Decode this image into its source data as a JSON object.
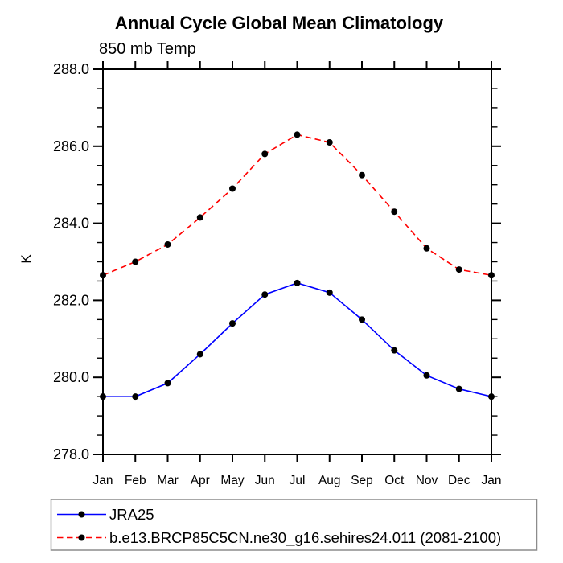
{
  "chart_data": {
    "type": "line",
    "title": "Annual Cycle Global Mean Climatology",
    "subtitle": "850 mb Temp",
    "xlabel": "",
    "ylabel": "K",
    "categories": [
      "Jan",
      "Feb",
      "Mar",
      "Apr",
      "May",
      "Jun",
      "Jul",
      "Aug",
      "Sep",
      "Oct",
      "Nov",
      "Dec",
      "Jan"
    ],
    "ylim": [
      278.0,
      288.0
    ],
    "y_major_tick_step": 2.0,
    "y_minor_tick_step": 0.5,
    "y_tick_labels": [
      "278.0",
      "280.0",
      "282.0",
      "284.0",
      "286.0",
      "288.0"
    ],
    "grid": false,
    "legend_position": "bottom-left-boxed",
    "axis_color": "#000000",
    "marker_color": "#000000",
    "series": [
      {
        "name": "JRA25",
        "color": "#0000ff",
        "line_style": "solid",
        "marker": "filled-circle",
        "values": [
          279.5,
          279.5,
          279.85,
          280.6,
          281.4,
          282.15,
          282.45,
          282.2,
          281.5,
          280.7,
          280.05,
          279.7,
          279.5
        ]
      },
      {
        "name": "b.e13.BRCP85C5CN.ne30_g16.sehires24.011 (2081-2100)",
        "color": "#ff0000",
        "line_style": "dashed",
        "marker": "filled-circle",
        "values": [
          282.65,
          283.0,
          283.45,
          284.15,
          284.9,
          285.8,
          286.3,
          286.1,
          285.25,
          284.3,
          283.35,
          282.8,
          282.65
        ]
      }
    ]
  }
}
